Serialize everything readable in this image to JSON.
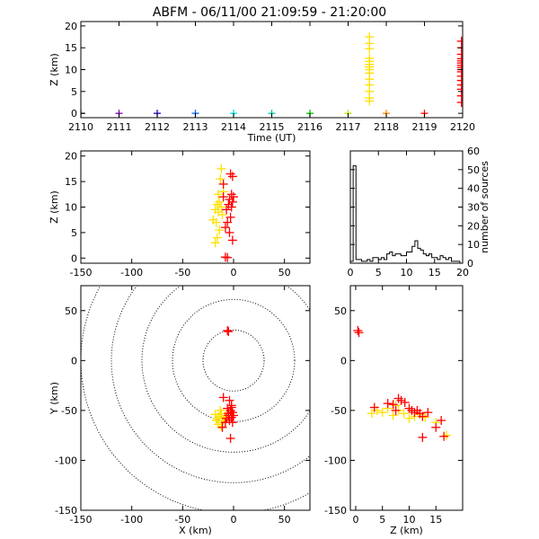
{
  "figure": {
    "title": "ABFM - 06/11/00 21:09:59 - 21:20:00"
  },
  "chart_data": [
    {
      "type": "scatter",
      "panel": "time-height",
      "xlabel": "Time (UT)",
      "ylabel": "Z (km)",
      "xlim": [
        2110,
        2120
      ],
      "ylim": [
        -1,
        21
      ],
      "xticks": [
        "2110",
        "2111",
        "2112",
        "2113",
        "2114",
        "2115",
        "2116",
        "2117",
        "2118",
        "2119",
        "2120"
      ],
      "yticks": [
        "0",
        "5",
        "10",
        "15",
        "20"
      ],
      "reference_markers": [
        {
          "x": 2110,
          "y": 0,
          "color": "#000000"
        },
        {
          "x": 2111,
          "y": 0,
          "color": "#8000c0"
        },
        {
          "x": 2112,
          "y": 0,
          "color": "#2000d0"
        },
        {
          "x": 2113,
          "y": 0,
          "color": "#0060ff"
        },
        {
          "x": 2114,
          "y": 0,
          "color": "#00d8e0"
        },
        {
          "x": 2115,
          "y": 0,
          "color": "#00c8a0"
        },
        {
          "x": 2116,
          "y": 0,
          "color": "#00c000"
        },
        {
          "x": 2117,
          "y": 0,
          "color": "#b8e000"
        },
        {
          "x": 2118,
          "y": 0,
          "color": "#ff9000"
        },
        {
          "x": 2119,
          "y": 0,
          "color": "#ff0000"
        }
      ],
      "series": [
        {
          "color": "#ffe000",
          "points": [
            [
              2117.56,
              17.5
            ],
            [
              2117.56,
              16.0
            ],
            [
              2117.56,
              14.8
            ],
            [
              2117.56,
              12.6
            ],
            [
              2117.56,
              11.9
            ],
            [
              2117.56,
              11.2
            ],
            [
              2117.56,
              10.6
            ],
            [
              2117.56,
              10.0
            ],
            [
              2117.56,
              9.2
            ],
            [
              2117.56,
              7.8
            ],
            [
              2117.56,
              6.5
            ],
            [
              2117.56,
              5.0
            ],
            [
              2117.56,
              3.5
            ],
            [
              2117.56,
              2.8
            ]
          ]
        },
        {
          "color": "#ff0000",
          "points": [
            [
              2119.97,
              16.5
            ],
            [
              2119.97,
              15.0
            ],
            [
              2119.97,
              13.5
            ],
            [
              2119.97,
              12.5
            ],
            [
              2119.97,
              12.0
            ],
            [
              2119.97,
              11.5
            ],
            [
              2119.97,
              11.0
            ],
            [
              2119.97,
              10.5
            ],
            [
              2119.97,
              10.0
            ],
            [
              2119.97,
              9.5
            ],
            [
              2119.97,
              8.5
            ],
            [
              2119.97,
              7.5
            ],
            [
              2119.97,
              6.5
            ],
            [
              2119.97,
              5.5
            ],
            [
              2119.97,
              4.0
            ],
            [
              2119.97,
              2.5
            ]
          ]
        }
      ]
    },
    {
      "type": "scatter",
      "panel": "x-z",
      "ylabel": "Z (km)",
      "xlim": [
        -150,
        75
      ],
      "ylim": [
        -1,
        21
      ],
      "xticks": [
        "-150",
        "-100",
        "-50",
        "0",
        "50"
      ],
      "yticks": [
        "0",
        "5",
        "10",
        "15",
        "20"
      ],
      "series": [
        {
          "color": "#ffe000",
          "points": [
            [
              -12,
              17.5
            ],
            [
              -13,
              15.5
            ],
            [
              -15,
              12.5
            ],
            [
              -14,
              11.0
            ],
            [
              -16,
              10.5
            ],
            [
              -12,
              10.0
            ],
            [
              -18,
              9.5
            ],
            [
              -15,
              9.0
            ],
            [
              -20,
              7.5
            ],
            [
              -17,
              7.0
            ],
            [
              -14,
              5.5
            ],
            [
              -16,
              4.0
            ],
            [
              -18,
              3.0
            ],
            [
              -11,
              8.5
            ],
            [
              -10,
              13.0
            ]
          ]
        },
        {
          "color": "#ff0000",
          "points": [
            [
              -1,
              16.0
            ],
            [
              -3,
              16.5
            ],
            [
              -10,
              14.5
            ],
            [
              -2,
              12.5
            ],
            [
              0,
              12.0
            ],
            [
              -4,
              11.5
            ],
            [
              -1,
              11.0
            ],
            [
              -5,
              10.5
            ],
            [
              -2,
              10.0
            ],
            [
              -7,
              9.5
            ],
            [
              -3,
              8.0
            ],
            [
              -6,
              7.0
            ],
            [
              -8,
              6.0
            ],
            [
              -4,
              5.0
            ],
            [
              -1,
              3.5
            ],
            [
              -10,
              12.0
            ],
            [
              -8,
              0.2
            ],
            [
              -6,
              0.1
            ]
          ]
        }
      ]
    },
    {
      "type": "bar",
      "panel": "histogram",
      "ylabel": "number of sources",
      "xlim": [
        0,
        20
      ],
      "ylim": [
        0,
        60
      ],
      "xticks": [
        "0",
        "5",
        "10",
        "15",
        "20"
      ],
      "yticks": [
        "0",
        "10",
        "20",
        "30",
        "40",
        "50",
        "60"
      ],
      "bin_width": 0.5,
      "bin_start": 0,
      "values": [
        1,
        52,
        2,
        2,
        1,
        1,
        2,
        1,
        3,
        3,
        2,
        3,
        2,
        5,
        6,
        4,
        5,
        5,
        4,
        4,
        6,
        6,
        9,
        12,
        8,
        7,
        5,
        4,
        5,
        3,
        3,
        2,
        4,
        3,
        2,
        3,
        1,
        1,
        1,
        0
      ]
    },
    {
      "type": "scatter",
      "panel": "x-y",
      "xlabel": "X (km)",
      "ylabel": "Y (km)",
      "xlim": [
        -150,
        75
      ],
      "ylim": [
        -150,
        75
      ],
      "xticks": [
        "-150",
        "-100",
        "-50",
        "0",
        "50"
      ],
      "yticks": [
        "-150",
        "-100",
        "-50",
        "0",
        "50"
      ],
      "range_rings_km": [
        30,
        60,
        90,
        120,
        150
      ],
      "series": [
        {
          "color": "#ffe000",
          "points": [
            [
              -12,
              -53
            ],
            [
              -14,
              -56
            ],
            [
              -16,
              -58
            ],
            [
              -10,
              -60
            ],
            [
              -18,
              -54
            ],
            [
              -13,
              -50
            ],
            [
              -11,
              -62
            ],
            [
              -15,
              -64
            ],
            [
              -9,
              -57
            ],
            [
              -17,
              -60
            ],
            [
              -12,
              -66
            ],
            [
              -8,
              -55
            ]
          ]
        },
        {
          "color": "#ff0000",
          "points": [
            [
              -6,
              30
            ],
            [
              -5,
              29
            ],
            [
              -10,
              -37
            ],
            [
              -4,
              -40
            ],
            [
              -2,
              -45
            ],
            [
              -6,
              -48
            ],
            [
              -3,
              -50
            ],
            [
              -1,
              -52
            ],
            [
              -5,
              -55
            ],
            [
              -2,
              -57
            ],
            [
              -7,
              -58
            ],
            [
              -4,
              -60
            ],
            [
              -1,
              -62
            ],
            [
              -8,
              -62
            ],
            [
              -11,
              -67
            ],
            [
              -3,
              -78
            ],
            [
              -2,
              -47
            ],
            [
              -5,
              -53
            ],
            [
              0,
              -55
            ]
          ]
        }
      ]
    },
    {
      "type": "scatter",
      "panel": "z-y",
      "xlabel": "Z (km)",
      "xlim": [
        -1,
        20
      ],
      "ylim": [
        -150,
        75
      ],
      "xticks": [
        "0",
        "5",
        "10",
        "15"
      ],
      "yticks": [
        "-150",
        "-100",
        "-50",
        "0",
        "50"
      ],
      "series": [
        {
          "color": "#ffe000",
          "points": [
            [
              3,
              -53
            ],
            [
              4,
              -50
            ],
            [
              5,
              -52
            ],
            [
              6,
              -48
            ],
            [
              7,
              -55
            ],
            [
              8,
              -50
            ],
            [
              9,
              -53
            ],
            [
              10,
              -58
            ],
            [
              11,
              -56
            ],
            [
              12,
              -54
            ],
            [
              13,
              -57
            ],
            [
              15,
              -62
            ],
            [
              17,
              -75
            ],
            [
              7.5,
              -45
            ],
            [
              10.5,
              -50
            ]
          ]
        },
        {
          "color": "#ff0000",
          "points": [
            [
              0.4,
              30
            ],
            [
              0.6,
              28
            ],
            [
              3.5,
              -47
            ],
            [
              6,
              -43
            ],
            [
              7,
              -44
            ],
            [
              8,
              -38
            ],
            [
              8.5,
              -40
            ],
            [
              9.2,
              -42
            ],
            [
              10,
              -48
            ],
            [
              10.5,
              -50
            ],
            [
              11,
              -52
            ],
            [
              11.5,
              -50
            ],
            [
              12,
              -53
            ],
            [
              12.5,
              -56
            ],
            [
              13.5,
              -52
            ],
            [
              15,
              -67
            ],
            [
              16,
              -60
            ],
            [
              16.5,
              -76
            ],
            [
              12.5,
              -77
            ],
            [
              7.5,
              -50
            ]
          ]
        }
      ]
    }
  ]
}
